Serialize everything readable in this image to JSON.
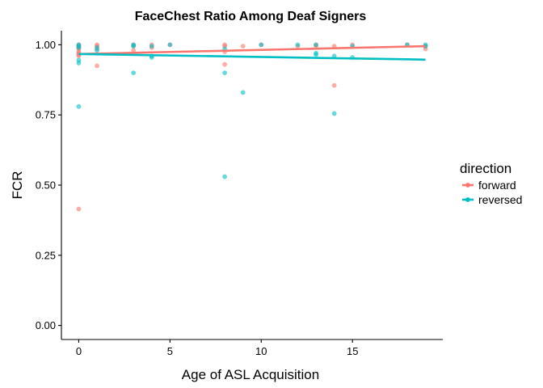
{
  "chart_data": {
    "type": "scatter",
    "title": "FaceChest Ratio Among Deaf Signers",
    "xlabel": "Age of ASL Acquisition",
    "ylabel": "FCR",
    "xlim": [
      -0.95,
      19.95
    ],
    "ylim": [
      -0.05,
      1.05
    ],
    "x_ticks": [
      0,
      5,
      10,
      15
    ],
    "x_tick_labels": [
      "0",
      "5",
      "10",
      "15"
    ],
    "y_ticks": [
      0,
      0.25,
      0.5,
      0.75,
      1
    ],
    "y_tick_labels": [
      "0.00",
      "0.25",
      "0.50",
      "0.75",
      "1.00"
    ],
    "grid": false,
    "legend": {
      "title": "direction",
      "placement": "right"
    },
    "series": [
      {
        "name": "forward",
        "color": "#F8766D",
        "points": [
          [
            0,
            1.0
          ],
          [
            0,
            0.995
          ],
          [
            0,
            0.99
          ],
          [
            0,
            0.985
          ],
          [
            0,
            0.975
          ],
          [
            0,
            0.97
          ],
          [
            0,
            0.965
          ],
          [
            0,
            0.96
          ],
          [
            0,
            0.415
          ],
          [
            1,
            1.0
          ],
          [
            1,
            0.995
          ],
          [
            1,
            0.985
          ],
          [
            1,
            0.925
          ],
          [
            3,
            1.0
          ],
          [
            3,
            0.995
          ],
          [
            3,
            0.98
          ],
          [
            4,
            1.0
          ],
          [
            4,
            0.99
          ],
          [
            5,
            1.0
          ],
          [
            8,
            1.0
          ],
          [
            8,
            0.995
          ],
          [
            8,
            0.975
          ],
          [
            8,
            0.93
          ],
          [
            9,
            0.995
          ],
          [
            10,
            1.0
          ],
          [
            12,
            0.995
          ],
          [
            13,
            1.0
          ],
          [
            13,
            0.995
          ],
          [
            14,
            0.995
          ],
          [
            14,
            0.855
          ],
          [
            15,
            1.0
          ],
          [
            18,
            1.0
          ],
          [
            19,
            0.995
          ],
          [
            19,
            0.985
          ]
        ],
        "trend": [
          [
            0,
            0.967
          ],
          [
            19,
            0.995
          ]
        ]
      },
      {
        "name": "reversed",
        "color": "#00BFC4",
        "points": [
          [
            0,
            1.0
          ],
          [
            0,
            0.995
          ],
          [
            0,
            0.99
          ],
          [
            0,
            0.945
          ],
          [
            0,
            0.935
          ],
          [
            0,
            0.78
          ],
          [
            1,
            0.99
          ],
          [
            1,
            0.98
          ],
          [
            3,
            1.0
          ],
          [
            3,
            0.995
          ],
          [
            3,
            0.9
          ],
          [
            4,
            0.995
          ],
          [
            4,
            0.96
          ],
          [
            4,
            0.955
          ],
          [
            5,
            1.0
          ],
          [
            8,
            0.985
          ],
          [
            8,
            0.9
          ],
          [
            8,
            0.53
          ],
          [
            9,
            0.83
          ],
          [
            10,
            1.0
          ],
          [
            12,
            1.0
          ],
          [
            13,
            1.0
          ],
          [
            13,
            0.97
          ],
          [
            13,
            0.965
          ],
          [
            14,
            0.96
          ],
          [
            14,
            0.755
          ],
          [
            15,
            0.995
          ],
          [
            15,
            0.955
          ],
          [
            18,
            1.0
          ],
          [
            19,
            1.0
          ],
          [
            19,
            0.995
          ]
        ],
        "trend": [
          [
            0,
            0.967
          ],
          [
            19,
            0.947
          ]
        ]
      }
    ]
  }
}
